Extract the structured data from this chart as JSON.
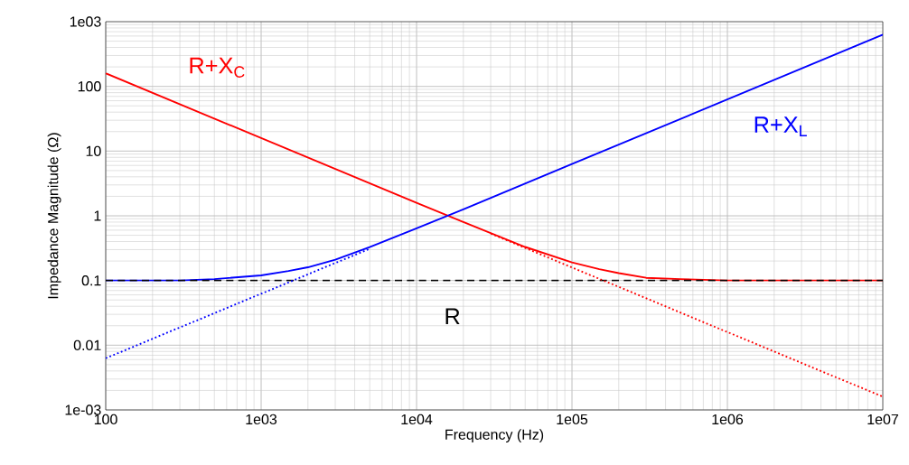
{
  "chart_data": {
    "type": "line",
    "xlabel": "Frequency (Hz)",
    "ylabel": "Impedance Magnitude (Ω)",
    "log": "xy",
    "grid": true,
    "marker": "none",
    "xlim": [
      100,
      10000000
    ],
    "ylim": [
      0.001,
      1000
    ],
    "xticks": [
      100,
      {
        "value": 1000,
        "label": "1e03"
      },
      {
        "value": 10000,
        "label": "1e04"
      },
      {
        "value": 100000,
        "label": "1e05"
      },
      {
        "value": 1000000,
        "label": "1e06"
      },
      {
        "value": 10000000,
        "label": "1e07"
      }
    ],
    "yticks": [
      {
        "value": 0.001,
        "label": "1e-03"
      },
      0.01,
      0.1,
      1,
      10,
      100,
      {
        "value": 1000,
        "label": "1e03"
      }
    ],
    "series": [
      {
        "name": "R+X$_{C}$",
        "color": "#ff0000",
        "line_style": "solid",
        "x": [
          100,
          1000,
          10000,
          20000,
          50000,
          100000,
          150000,
          200000,
          300000,
          500000,
          1000000,
          10000000
        ],
        "values": [
          159,
          15.9,
          1.59,
          0.8,
          0.33,
          0.19,
          0.15,
          0.13,
          0.11,
          0.105,
          0.1,
          0.1
        ]
      },
      {
        "name": "R+X$_{L}$",
        "color": "#0000ff",
        "line_style": "solid",
        "x": [
          100,
          300,
          500,
          1000,
          1500,
          2000,
          3000,
          5000,
          10000,
          20000,
          100000,
          1000000,
          10000000
        ],
        "values": [
          0.1,
          0.1,
          0.105,
          0.12,
          0.14,
          0.16,
          0.21,
          0.33,
          0.64,
          1.26,
          6.3,
          63,
          630
        ]
      },
      {
        "name": "R",
        "color": "#000000",
        "line_style": "dashed",
        "x": [
          100,
          10000000
        ],
        "values": [
          0.1,
          0.1
        ]
      },
      {
        "color": "#0000ff",
        "line_style": "dotted",
        "x": [
          100,
          5000
        ],
        "values": [
          0.0063,
          0.31
        ]
      },
      {
        "color": "#ff0000",
        "line_style": "dotted",
        "x": [
          30000,
          10000000
        ],
        "values": [
          0.53,
          0.0016
        ]
      }
    ]
  }
}
